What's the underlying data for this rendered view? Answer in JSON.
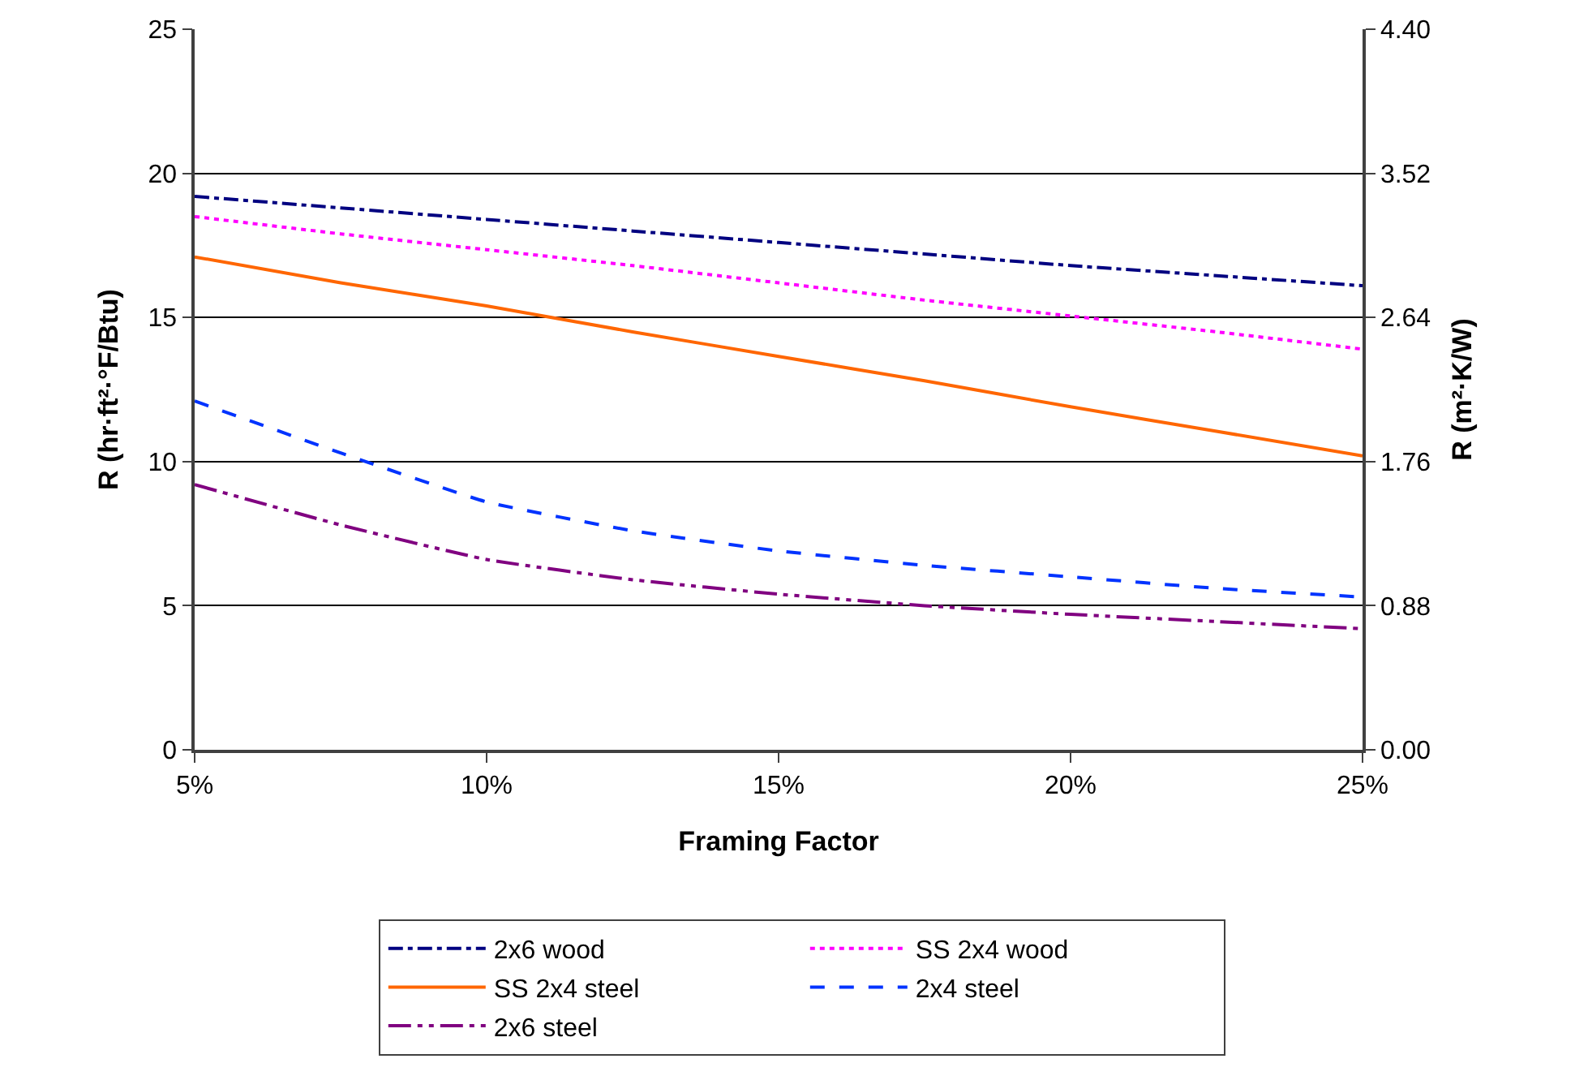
{
  "chart_data": {
    "type": "line",
    "xlabel": "Framing Factor",
    "ylabel": "R (hr·ft²·°F/Btu)",
    "y2label": "R (m²·K/W)",
    "x": [
      5,
      7.5,
      10,
      12.5,
      15,
      17.5,
      20,
      22.5,
      25
    ],
    "series": [
      {
        "name": "2x6 wood",
        "color": "#000080",
        "line_style": "dashdot",
        "values": [
          19.2,
          18.8,
          18.4,
          18.0,
          17.6,
          17.2,
          16.8,
          16.45,
          16.1
        ]
      },
      {
        "name": "SS 2x4 wood",
        "color": "#ff00ff",
        "line_style": "dotted",
        "values": [
          18.5,
          17.9,
          17.35,
          16.8,
          16.2,
          15.6,
          15.05,
          14.5,
          13.9
        ]
      },
      {
        "name": "SS 2x4 steel",
        "color": "#ff6600",
        "line_style": "solid",
        "values": [
          17.1,
          16.2,
          15.4,
          14.5,
          13.65,
          12.8,
          11.9,
          11.05,
          10.2
        ]
      },
      {
        "name": "2x4 steel",
        "color": "#0033ff",
        "line_style": "dashed",
        "values": [
          12.1,
          10.3,
          8.6,
          7.6,
          6.9,
          6.4,
          6.0,
          5.6,
          5.3
        ]
      },
      {
        "name": "2x6 steel",
        "color": "#800080",
        "line_style": "dashdotdot",
        "values": [
          9.2,
          7.8,
          6.6,
          5.9,
          5.4,
          5.0,
          4.7,
          4.45,
          4.2
        ]
      }
    ],
    "xlim": [
      5,
      25
    ],
    "xticks": [
      {
        "value": 5,
        "label": "5%"
      },
      {
        "value": 10,
        "label": "10%"
      },
      {
        "value": 15,
        "label": "15%"
      },
      {
        "value": 20,
        "label": "20%"
      },
      {
        "value": 25,
        "label": "25%"
      }
    ],
    "ylim": [
      0,
      25
    ],
    "yticks": [
      0,
      5,
      10,
      15,
      20,
      25
    ],
    "y2lim": [
      0,
      4.4
    ],
    "y2ticks": [
      {
        "value": 0,
        "label": "0.00"
      },
      {
        "value": 0.88,
        "label": "0.88"
      },
      {
        "value": 1.76,
        "label": "1.76"
      },
      {
        "value": 2.64,
        "label": "2.64"
      },
      {
        "value": 3.52,
        "label": "3.52"
      },
      {
        "value": 4.4,
        "label": "4.40"
      }
    ],
    "grid": "y",
    "legend": "bottom",
    "marker": "none"
  }
}
